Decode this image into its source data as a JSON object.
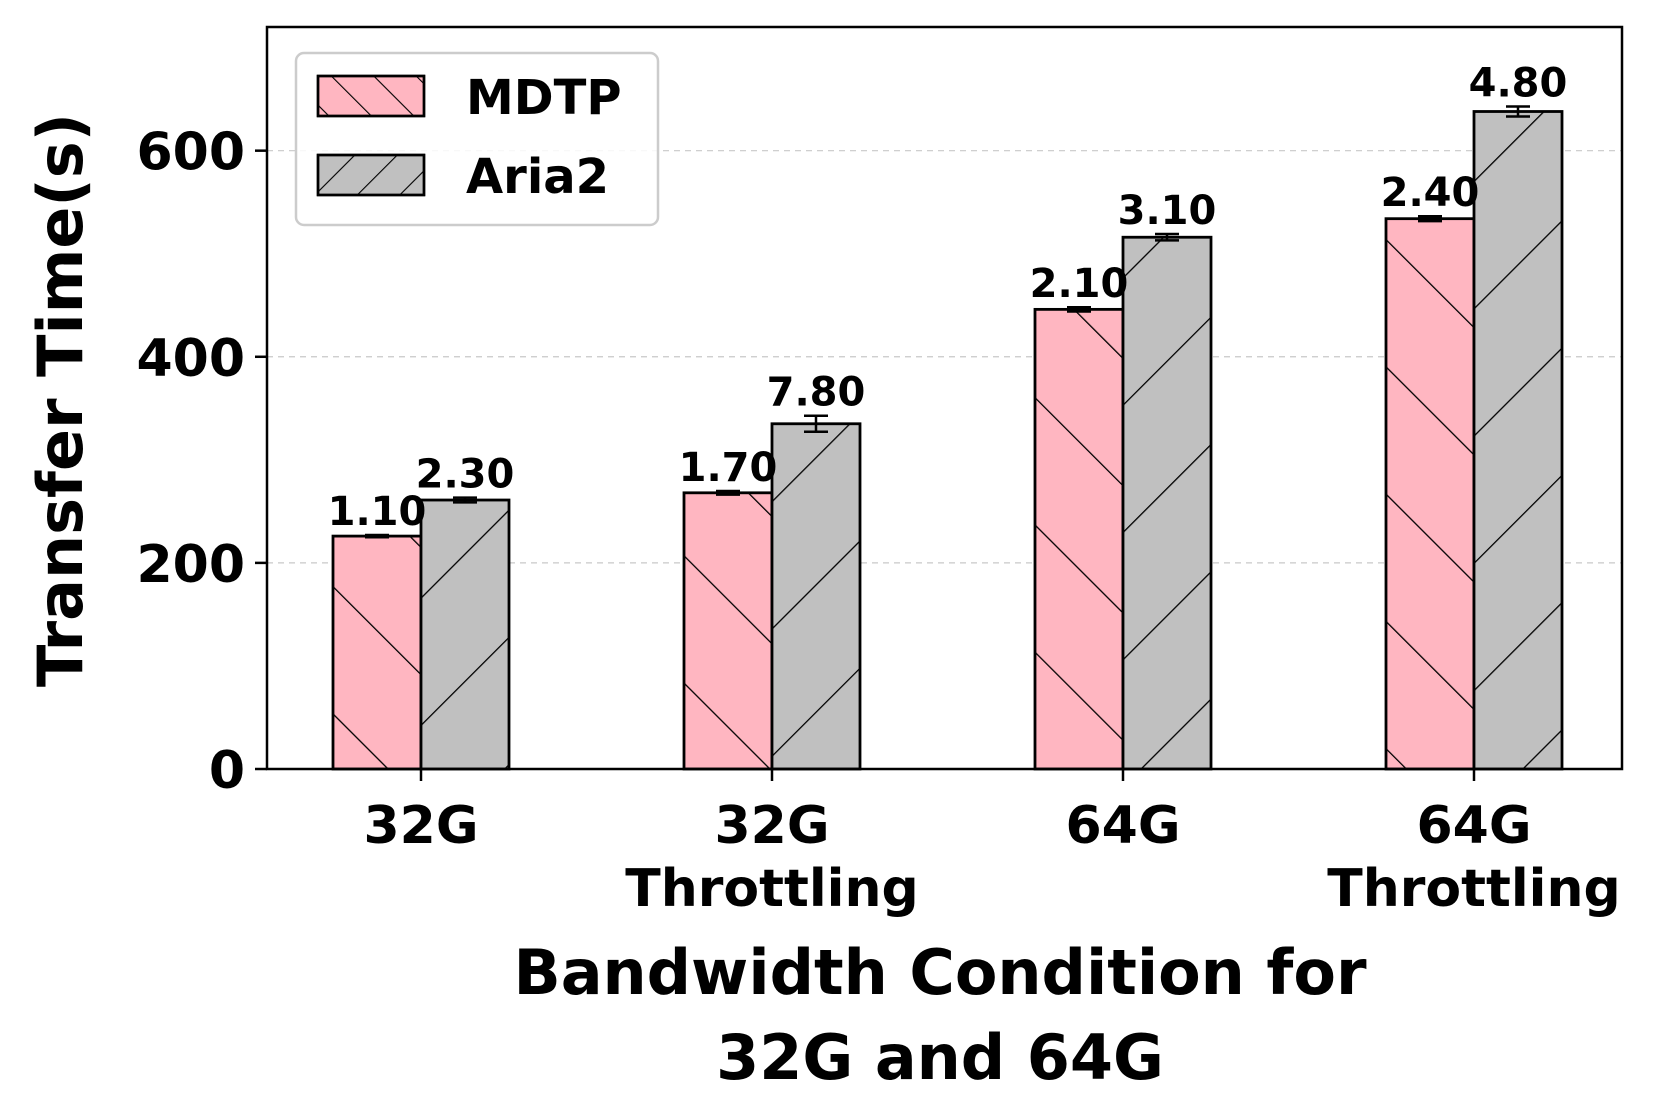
{
  "chart_data": {
    "type": "bar",
    "title": "",
    "xlabel": [
      "Bandwidth Condition for",
      "32G and 64G"
    ],
    "ylabel": "Transfer Time(s)",
    "ylim": [
      0,
      720
    ],
    "yticks": [
      0,
      200,
      400,
      600
    ],
    "grid": "y-dashed",
    "legend_position": "top-left",
    "categories": [
      [
        "32G"
      ],
      [
        "32G",
        "Throttling"
      ],
      [
        "64G"
      ],
      [
        "64G",
        "Throttling"
      ]
    ],
    "series": [
      {
        "name": "MDTP",
        "color": "#ffb6c1",
        "hatch": "forward-diagonal",
        "values": [
          226,
          268,
          446,
          534
        ],
        "errors": [
          1.1,
          1.7,
          2.1,
          2.4
        ],
        "labels": [
          "1.10",
          "1.70",
          "2.10",
          "2.40"
        ]
      },
      {
        "name": "Aria2",
        "color": "#c0c0c0",
        "hatch": "back-diagonal",
        "values": [
          261,
          335,
          516,
          638
        ],
        "errors": [
          2.3,
          7.8,
          3.1,
          4.8
        ],
        "labels": [
          "2.30",
          "7.80",
          "3.10",
          "4.80"
        ]
      }
    ]
  }
}
